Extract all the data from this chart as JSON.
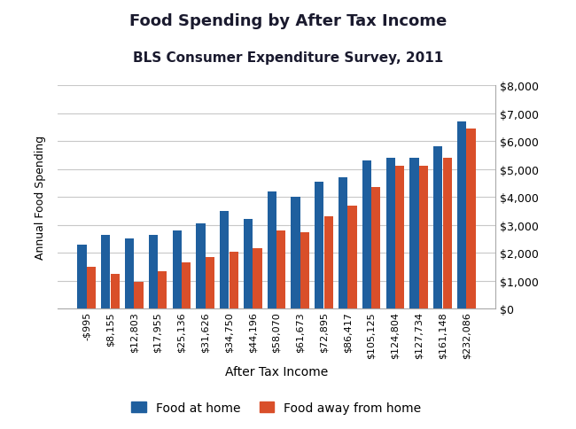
{
  "title": "Food Spending by After Tax Income",
  "subtitle": "BLS Consumer Expenditure Survey, 2011",
  "xlabel": "After Tax Income",
  "ylabel": "Annual Food Spending",
  "categories": [
    "-$995",
    "$8,155",
    "$12,803",
    "$17,955",
    "$25,136",
    "$31,626",
    "$34,750",
    "$44,196",
    "$58,070",
    "$61,673",
    "$72,895",
    "$86,417",
    "$105,125",
    "$124,804",
    "$127,734",
    "$161,148",
    "$232,086"
  ],
  "food_at_home": [
    2300,
    2650,
    2500,
    2650,
    2800,
    3050,
    3500,
    3200,
    4200,
    4000,
    4550,
    4700,
    5300,
    5400,
    5400,
    5800,
    6700
  ],
  "food_away_from_home": [
    1500,
    1250,
    950,
    1350,
    1650,
    1850,
    2050,
    2150,
    2800,
    2750,
    3300,
    3700,
    4350,
    5100,
    5100,
    5400,
    6450
  ],
  "color_at_home": "#1f5f9e",
  "color_away": "#d94f2a",
  "ylim": [
    0,
    8000
  ],
  "yticks": [
    0,
    1000,
    2000,
    3000,
    4000,
    5000,
    6000,
    7000,
    8000
  ],
  "legend_labels": [
    "Food at home",
    "Food away from home"
  ],
  "background_color": "#ffffff",
  "grid_color": "#c8c8c8",
  "title_color": "#1a1a2e",
  "subtitle_color": "#1a1a2e"
}
